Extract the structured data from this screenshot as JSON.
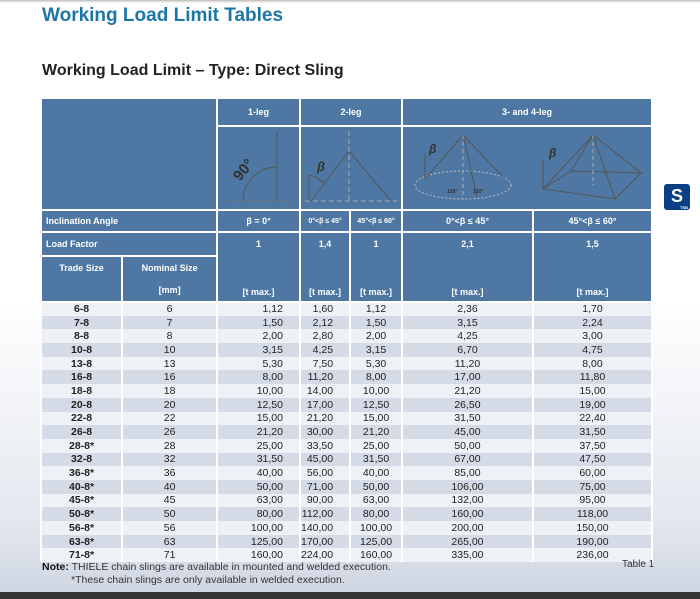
{
  "page_title": "Working Load Limit Tables",
  "section_title": "Working Load Limit – Type: Direct Sling",
  "table": {
    "groups": [
      "1-leg",
      "2-leg",
      "3- and 4-leg"
    ],
    "inclination_label": "Inclination Angle",
    "inclination": [
      "β = 0°",
      "0°<β ≤ 45°",
      "45°<β ≤ 60°",
      "0°<β ≤ 45°",
      "45°<β ≤ 60°"
    ],
    "load_factor_label": "Load Factor",
    "load_factor": [
      "1",
      "1,4",
      "1",
      "2,1",
      "1,5"
    ],
    "trade_size_label": "Trade Size",
    "nominal_size_label": "Nominal Size",
    "nominal_unit": "[mm]",
    "unit": "[t max.]",
    "diagram_labels": {
      "angle90": "90°",
      "beta": "β",
      "angle120": "120°"
    },
    "rows": [
      [
        "6-8",
        "6",
        "1,12",
        "1,60",
        "1,12",
        "2,36",
        "1,70"
      ],
      [
        "7-8",
        "7",
        "1,50",
        "2,12",
        "1,50",
        "3,15",
        "2,24"
      ],
      [
        "8-8",
        "8",
        "2,00",
        "2,80",
        "2,00",
        "4,25",
        "3,00"
      ],
      [
        "10-8",
        "10",
        "3,15",
        "4,25",
        "3,15",
        "6,70",
        "4,75"
      ],
      [
        "13-8",
        "13",
        "5,30",
        "7,50",
        "5,30",
        "11,20",
        "8,00"
      ],
      [
        "16-8",
        "16",
        "8,00",
        "11,20",
        "8,00",
        "17,00",
        "11,80"
      ],
      [
        "18-8",
        "18",
        "10,00",
        "14,00",
        "10,00",
        "21,20",
        "15,00"
      ],
      [
        "20-8",
        "20",
        "12,50",
        "17,00",
        "12,50",
        "26,50",
        "19,00"
      ],
      [
        "22-8",
        "22",
        "15,00",
        "21,20",
        "15,00",
        "31,50",
        "22,40"
      ],
      [
        "26-8",
        "26",
        "21,20",
        "30,00",
        "21,20",
        "45,00",
        "31,50"
      ],
      [
        "28-8*",
        "28",
        "25,00",
        "33,50",
        "25,00",
        "50,00",
        "37,50"
      ],
      [
        "32-8",
        "32",
        "31,50",
        "45,00",
        "31,50",
        "67,00",
        "47,50"
      ],
      [
        "36-8*",
        "36",
        "40,00",
        "56,00",
        "40,00",
        "85,00",
        "60,00"
      ],
      [
        "40-8*",
        "40",
        "50,00",
        "71,00",
        "50,00",
        "106,00",
        "75,00"
      ],
      [
        "45-8*",
        "45",
        "63,00",
        "90,00",
        "63,00",
        "132,00",
        "95,00"
      ],
      [
        "50-8*",
        "50",
        "80,00",
        "112,00",
        "80,00",
        "160,00",
        "118,00"
      ],
      [
        "56-8*",
        "56",
        "100,00",
        "140,00",
        "100,00",
        "200,00",
        "150,00"
      ],
      [
        "63-8*",
        "63",
        "125,00",
        "170,00",
        "125,00",
        "265,00",
        "190,00"
      ],
      [
        "71-8*",
        "71",
        "160,00",
        "224,00",
        "160,00",
        "335,00",
        "236,00"
      ]
    ]
  },
  "note": {
    "label": "Note:",
    "line1": "THIELE chain slings are available in mounted and welded execution.",
    "line2": "*These chain slings are only available in welded execution."
  },
  "table_caption": "Table 1",
  "logo": {
    "glyph": "ϑ",
    "text": "TSB"
  }
}
